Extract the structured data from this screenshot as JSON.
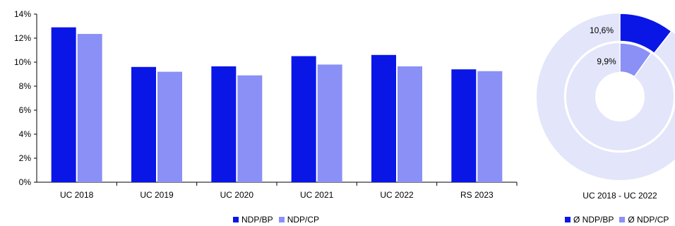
{
  "colors": {
    "bp": "#0a16e6",
    "cp": "#8a90f5",
    "ring": "#e3e5fa"
  },
  "chart_data": [
    {
      "type": "bar",
      "categories": [
        "UC 2018",
        "UC 2019",
        "UC 2020",
        "UC 2021",
        "UC 2022",
        "RS 2023"
      ],
      "series": [
        {
          "name": "NDP/BP",
          "values": [
            12.9,
            9.6,
            9.65,
            10.5,
            10.6,
            9.4
          ]
        },
        {
          "name": "NDP/CP",
          "values": [
            12.35,
            9.2,
            8.9,
            9.8,
            9.65,
            9.25
          ]
        }
      ],
      "yticks": [
        "0%",
        "2%",
        "4%",
        "6%",
        "8%",
        "10%",
        "12%",
        "14%"
      ],
      "ylim": [
        0,
        14
      ],
      "legend": "bottom"
    },
    {
      "type": "pie",
      "title": "UC 2018 - UC 2022",
      "series": [
        {
          "name": "Ø NDP/BP",
          "value": 10.6,
          "label": "10,6%"
        },
        {
          "name": "Ø NDP/CP",
          "value": 9.9,
          "label": "9,9%"
        }
      ],
      "legend": "bottom"
    }
  ]
}
